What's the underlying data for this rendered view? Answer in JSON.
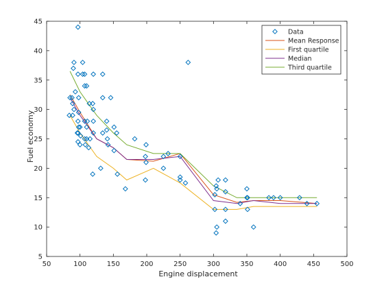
{
  "chart_data": {
    "type": "scatter",
    "title": "",
    "xlabel": "Engine displacement",
    "ylabel": "Fuel economy",
    "xlim": [
      50,
      500
    ],
    "ylim": [
      5,
      45
    ],
    "xticks": [
      50,
      100,
      150,
      200,
      250,
      300,
      350,
      400,
      450,
      500
    ],
    "yticks": [
      5,
      10,
      15,
      20,
      25,
      30,
      35,
      40,
      45
    ],
    "grid": false,
    "legend_position": "top-right",
    "series": [
      {
        "name": "Data",
        "kind": "scatter",
        "marker": "diamond",
        "color": "#0072BD",
        "points": [
          [
            97,
            44
          ],
          [
            91,
            38
          ],
          [
            104,
            38
          ],
          [
            90,
            37
          ],
          [
            97,
            36
          ],
          [
            104,
            36
          ],
          [
            107,
            36
          ],
          [
            120,
            36
          ],
          [
            134,
            36
          ],
          [
            107,
            34
          ],
          [
            110,
            34
          ],
          [
            93,
            33
          ],
          [
            88,
            32
          ],
          [
            85,
            32
          ],
          [
            98,
            32
          ],
          [
            114,
            31
          ],
          [
            119,
            31
          ],
          [
            134,
            32
          ],
          [
            146,
            32
          ],
          [
            89,
            31
          ],
          [
            91,
            30
          ],
          [
            98,
            29.5
          ],
          [
            84,
            29
          ],
          [
            89,
            29
          ],
          [
            120,
            30
          ],
          [
            140,
            28
          ],
          [
            107,
            28
          ],
          [
            111,
            28
          ],
          [
            120,
            28
          ],
          [
            97,
            28
          ],
          [
            98,
            27
          ],
          [
            100,
            27
          ],
          [
            110,
            27
          ],
          [
            140,
            26.5
          ],
          [
            151,
            27
          ],
          [
            155,
            26
          ],
          [
            134,
            26
          ],
          [
            96,
            26
          ],
          [
            97,
            26
          ],
          [
            120,
            26
          ],
          [
            101,
            25.5
          ],
          [
            107,
            25
          ],
          [
            110,
            25
          ],
          [
            115,
            25
          ],
          [
            141,
            25
          ],
          [
            182,
            25
          ],
          [
            97,
            24.5
          ],
          [
            100,
            24
          ],
          [
            108,
            24
          ],
          [
            142,
            24
          ],
          [
            199,
            24
          ],
          [
            113,
            23.5
          ],
          [
            151,
            23
          ],
          [
            232,
            22.5
          ],
          [
            225,
            22
          ],
          [
            199,
            21
          ],
          [
            198,
            22
          ],
          [
            250,
            22
          ],
          [
            131,
            20
          ],
          [
            225,
            20
          ],
          [
            119,
            19
          ],
          [
            156,
            19
          ],
          [
            250,
            18.5
          ],
          [
            250,
            18
          ],
          [
            198,
            18
          ],
          [
            258,
            17.5
          ],
          [
            307,
            18
          ],
          [
            318,
            18
          ],
          [
            304,
            17
          ],
          [
            305,
            16.5
          ],
          [
            350,
            16.5
          ],
          [
            168,
            16.5
          ],
          [
            318,
            16
          ],
          [
            302,
            15.5
          ],
          [
            350,
            15
          ],
          [
            351,
            15
          ],
          [
            383,
            15
          ],
          [
            390,
            15
          ],
          [
            400,
            15
          ],
          [
            429,
            15
          ],
          [
            455,
            14
          ],
          [
            440,
            14
          ],
          [
            340,
            14
          ],
          [
            351,
            13
          ],
          [
            302,
            13
          ],
          [
            318,
            13
          ],
          [
            318,
            11
          ],
          [
            305,
            10
          ],
          [
            360,
            10
          ],
          [
            304,
            9
          ],
          [
            262,
            38
          ]
        ]
      },
      {
        "name": "Mean Response",
        "kind": "line",
        "color": "#D95319",
        "x": [
          85,
          100,
          125,
          150,
          170,
          210,
          250,
          300,
          335,
          360,
          400,
          455
        ],
        "y": [
          32.5,
          29.5,
          25,
          23.5,
          21.5,
          21.2,
          22.5,
          15.5,
          14.2,
          14.5,
          14.5,
          14
        ]
      },
      {
        "name": "First quartile",
        "kind": "line",
        "color": "#EDB120",
        "x": [
          85,
          100,
          125,
          150,
          170,
          210,
          250,
          300,
          335,
          360,
          400,
          455
        ],
        "y": [
          29,
          26,
          22,
          20,
          18,
          20,
          17.5,
          13,
          13,
          13.5,
          13.5,
          13.5
        ]
      },
      {
        "name": "Median",
        "kind": "line",
        "color": "#7E2F8E",
        "x": [
          85,
          100,
          125,
          150,
          170,
          210,
          250,
          300,
          335,
          360,
          400,
          455
        ],
        "y": [
          32,
          29,
          25,
          23.5,
          21.5,
          21.5,
          22,
          14.5,
          14,
          14.5,
          14,
          14
        ]
      },
      {
        "name": "Third quartile",
        "kind": "line",
        "color": "#77AC30",
        "x": [
          85,
          100,
          125,
          150,
          170,
          210,
          250,
          300,
          335,
          360,
          400,
          455
        ],
        "y": [
          36.5,
          33,
          29,
          26,
          24,
          22.5,
          22.5,
          17,
          15,
          15,
          15,
          15
        ]
      }
    ]
  }
}
